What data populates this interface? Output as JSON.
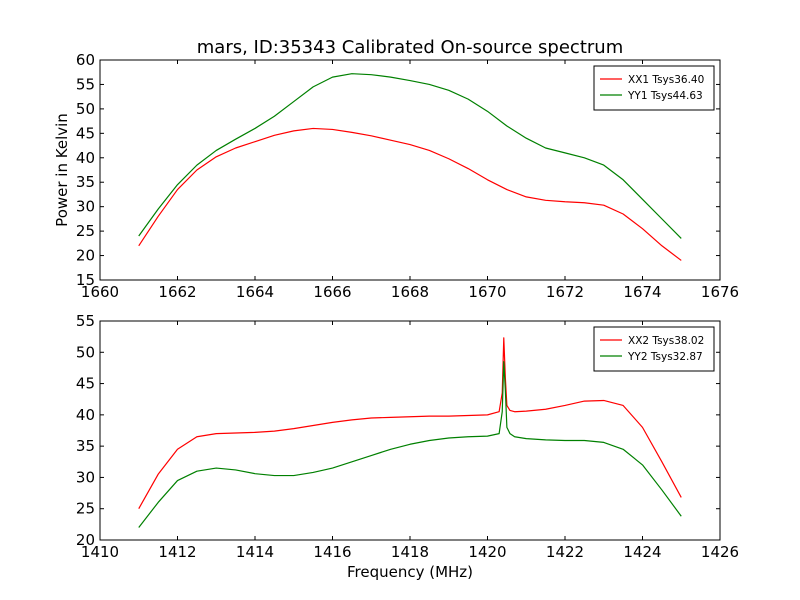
{
  "chart_data": [
    {
      "type": "line",
      "title": "mars, ID:35343 Calibrated On-source spectrum",
      "xlabel": "",
      "ylabel": "Power in Kelvin",
      "xlim": [
        1660,
        1676
      ],
      "ylim": [
        15,
        60
      ],
      "xticks": [
        "1660",
        "1662",
        "1664",
        "1666",
        "1668",
        "1670",
        "1672",
        "1674",
        "1676"
      ],
      "yticks": [
        "15",
        "20",
        "25",
        "30",
        "35",
        "40",
        "45",
        "50",
        "55",
        "60"
      ],
      "grid": false,
      "legend_position": "top-right",
      "series": [
        {
          "name": "XX1 Tsys36.40",
          "color": "#ff0000",
          "x": [
            1661.0,
            1661.5,
            1662.0,
            1662.5,
            1663.0,
            1663.5,
            1664.0,
            1664.5,
            1665.0,
            1665.5,
            1666.0,
            1666.5,
            1667.0,
            1667.5,
            1668.0,
            1668.5,
            1669.0,
            1669.5,
            1670.0,
            1670.5,
            1671.0,
            1671.5,
            1672.0,
            1672.5,
            1673.0,
            1673.5,
            1674.0,
            1674.5,
            1675.0
          ],
          "y": [
            22.0,
            28.0,
            33.5,
            37.5,
            40.2,
            42.0,
            43.3,
            44.6,
            45.5,
            46.0,
            45.8,
            45.2,
            44.5,
            43.6,
            42.7,
            41.5,
            39.8,
            37.8,
            35.5,
            33.5,
            32.0,
            31.3,
            31.0,
            30.8,
            30.3,
            28.5,
            25.5,
            22.0,
            19.0
          ]
        },
        {
          "name": "YY1 Tsys44.63",
          "color": "#008000",
          "x": [
            1661.0,
            1661.5,
            1662.0,
            1662.5,
            1663.0,
            1663.5,
            1664.0,
            1664.5,
            1665.0,
            1665.5,
            1666.0,
            1666.5,
            1667.0,
            1667.5,
            1668.0,
            1668.5,
            1669.0,
            1669.5,
            1670.0,
            1670.5,
            1671.0,
            1671.5,
            1672.0,
            1672.5,
            1673.0,
            1673.5,
            1674.0,
            1674.5,
            1675.0
          ],
          "y": [
            24.0,
            29.5,
            34.5,
            38.5,
            41.5,
            43.8,
            46.0,
            48.5,
            51.5,
            54.5,
            56.5,
            57.2,
            57.0,
            56.5,
            55.8,
            55.0,
            53.8,
            52.0,
            49.5,
            46.5,
            44.0,
            42.0,
            41.0,
            40.0,
            38.5,
            35.5,
            31.5,
            27.5,
            23.5
          ]
        }
      ]
    },
    {
      "type": "line",
      "title": "",
      "xlabel": "Frequency (MHz)",
      "ylabel": "",
      "xlim": [
        1410,
        1426
      ],
      "ylim": [
        20,
        55
      ],
      "xticks": [
        "1410",
        "1412",
        "1414",
        "1416",
        "1418",
        "1420",
        "1422",
        "1424",
        "1426"
      ],
      "yticks": [
        "20",
        "25",
        "30",
        "35",
        "40",
        "45",
        "50",
        "55"
      ],
      "grid": false,
      "legend_position": "top-right",
      "series": [
        {
          "name": "XX2 Tsys38.02",
          "color": "#ff0000",
          "x": [
            1411.0,
            1411.5,
            1412.0,
            1412.5,
            1413.0,
            1413.5,
            1414.0,
            1414.5,
            1415.0,
            1415.5,
            1416.0,
            1416.5,
            1417.0,
            1417.5,
            1418.0,
            1418.5,
            1419.0,
            1419.5,
            1420.0,
            1420.3,
            1420.38,
            1420.42,
            1420.46,
            1420.5,
            1420.58,
            1420.7,
            1421.0,
            1421.5,
            1422.0,
            1422.5,
            1423.0,
            1423.5,
            1424.0,
            1424.5,
            1425.0
          ],
          "y": [
            25.0,
            30.5,
            34.5,
            36.5,
            37.0,
            37.1,
            37.2,
            37.4,
            37.8,
            38.3,
            38.8,
            39.2,
            39.5,
            39.6,
            39.7,
            39.8,
            39.8,
            39.9,
            40.0,
            40.5,
            43.5,
            52.3,
            46.0,
            41.5,
            40.7,
            40.5,
            40.6,
            40.9,
            41.5,
            42.2,
            42.3,
            41.5,
            38.0,
            32.5,
            26.8
          ]
        },
        {
          "name": "YY2 Tsys32.87",
          "color": "#008000",
          "x": [
            1411.0,
            1411.5,
            1412.0,
            1412.5,
            1413.0,
            1413.5,
            1414.0,
            1414.5,
            1415.0,
            1415.5,
            1416.0,
            1416.5,
            1417.0,
            1417.5,
            1418.0,
            1418.5,
            1419.0,
            1419.5,
            1420.0,
            1420.3,
            1420.38,
            1420.42,
            1420.46,
            1420.5,
            1420.58,
            1420.7,
            1421.0,
            1421.5,
            1422.0,
            1422.5,
            1423.0,
            1423.5,
            1424.0,
            1424.5,
            1425.0
          ],
          "y": [
            22.0,
            26.0,
            29.5,
            31.0,
            31.5,
            31.2,
            30.6,
            30.3,
            30.3,
            30.8,
            31.5,
            32.5,
            33.5,
            34.5,
            35.3,
            35.9,
            36.3,
            36.5,
            36.6,
            37.0,
            40.5,
            48.5,
            44.0,
            38.0,
            37.0,
            36.5,
            36.2,
            36.0,
            35.9,
            35.9,
            35.6,
            34.5,
            32.0,
            28.0,
            23.8
          ]
        }
      ]
    }
  ]
}
